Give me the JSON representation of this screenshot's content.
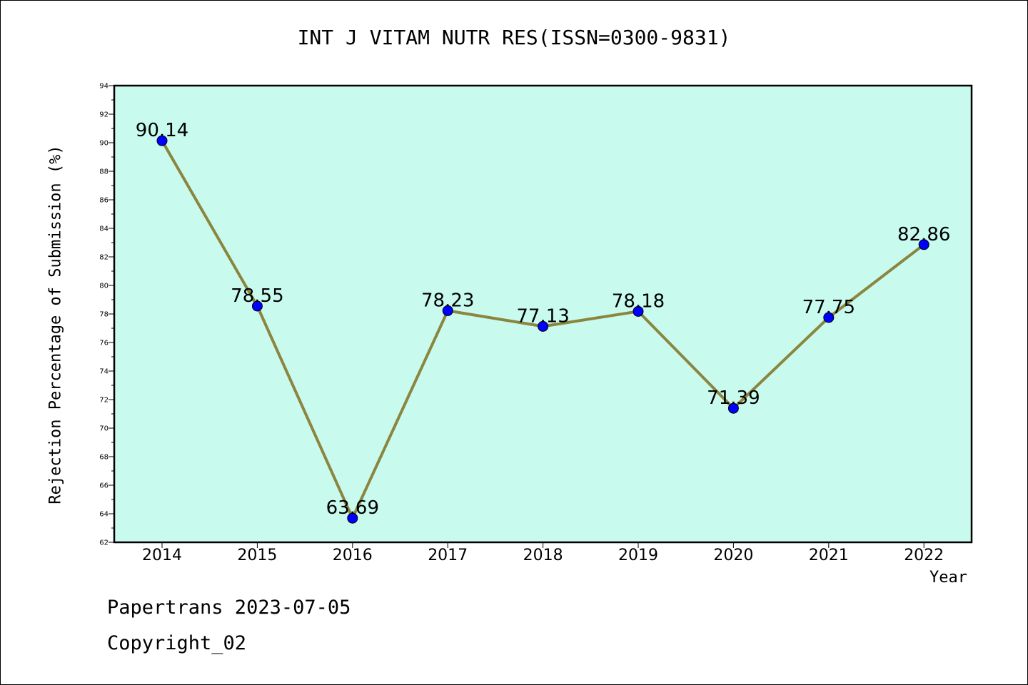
{
  "chart_data": {
    "type": "line",
    "title": "INT J VITAM NUTR RES(ISSN=0300-9831)",
    "xlabel": "Year",
    "ylabel": "Rejection Percentage of Submission (%)",
    "categories": [
      "2014",
      "2015",
      "2016",
      "2017",
      "2018",
      "2019",
      "2020",
      "2021",
      "2022"
    ],
    "values": [
      90.14,
      78.55,
      63.69,
      78.23,
      77.13,
      78.18,
      71.39,
      77.75,
      82.86
    ],
    "data_labels": [
      "90.14",
      "78.55",
      "63.69",
      "78.23",
      "77.13",
      "78.18",
      "71.39",
      "77.75",
      "82.86"
    ],
    "ylim": [
      62,
      94
    ],
    "yticks": [
      62,
      64,
      66,
      68,
      70,
      72,
      74,
      76,
      78,
      80,
      82,
      84,
      86,
      88,
      90,
      92,
      94
    ],
    "grid": false,
    "legend": "none",
    "colors": {
      "plot_background": "#c8fbee",
      "line": "#8b8540",
      "marker": "#0000ff"
    }
  },
  "footer": {
    "line1": "Papertrans 2023-07-05",
    "line2": "Copyright_02"
  }
}
